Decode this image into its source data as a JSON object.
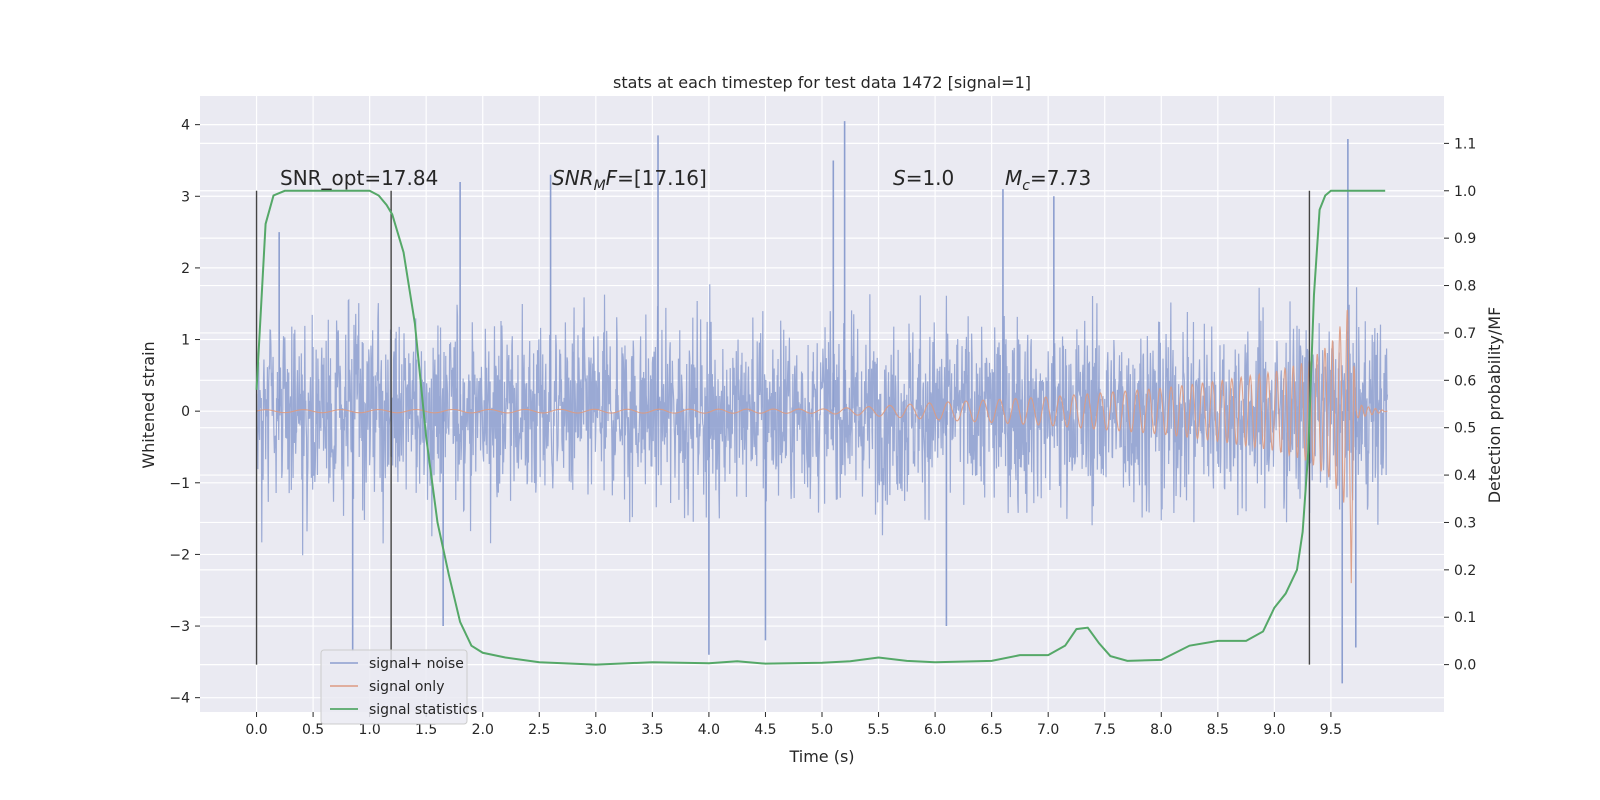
{
  "chart_data": {
    "type": "line",
    "title": "stats at each timestep for test data 1472 [signal=1]",
    "xlabel": "Time (s)",
    "ylabel": "Whitened strain",
    "y2label": "Detection probability/MF",
    "xlim": [
      -0.5,
      10.5
    ],
    "ylim": [
      -4.2,
      4.4
    ],
    "y2lim": [
      -0.1,
      1.2
    ],
    "x_ticks": [
      "0.0",
      "0.5",
      "1.0",
      "1.5",
      "2.0",
      "2.5",
      "3.0",
      "3.5",
      "4.0",
      "4.5",
      "5.0",
      "5.5",
      "6.0",
      "6.5",
      "7.0",
      "7.5",
      "8.0",
      "8.5",
      "9.0",
      "9.5"
    ],
    "y_ticks": [
      "4",
      "3",
      "2",
      "1",
      "0",
      "−1",
      "−2",
      "−3",
      "−4"
    ],
    "y2_ticks": [
      "1.1",
      "1.0",
      "0.9",
      "0.8",
      "0.7",
      "0.6",
      "0.5",
      "0.4",
      "0.3",
      "0.2",
      "0.1",
      "0.0"
    ],
    "grid": true,
    "legend_position": "lower-left",
    "annotations": {
      "snr_opt": "SNR_opt=17.84",
      "snr_mf_italic": "SNR",
      "snr_mf_sub": "M",
      "snr_mf_italic2": "F",
      "snr_mf_value": "=[17.16]",
      "s_italic": "S",
      "s_value": "=1.0",
      "mc_italic": "M",
      "mc_sub": "c",
      "mc_value": "=7.73"
    },
    "vertical_markers": [
      0.0,
      1.19,
      9.31
    ],
    "series": [
      {
        "name": "signal+ noise",
        "color": "#8c9ecf",
        "axis": "left",
        "noise_band": {
          "x_start": 0.0,
          "x_end": 10.0,
          "typical_abs": 1.2,
          "peak_abs": 3.5
        },
        "spikes": [
          {
            "x": 0.85,
            "y": -3.35
          },
          {
            "x": 1.65,
            "y": -3.0
          },
          {
            "x": 2.6,
            "y": 3.3
          },
          {
            "x": 3.55,
            "y": 3.85
          },
          {
            "x": 4.0,
            "y": -3.4
          },
          {
            "x": 4.5,
            "y": -3.2
          },
          {
            "x": 5.2,
            "y": 4.05
          },
          {
            "x": 5.1,
            "y": 3.5
          },
          {
            "x": 9.6,
            "y": -3.8
          },
          {
            "x": 9.65,
            "y": 3.8
          },
          {
            "x": 9.72,
            "y": -3.3
          },
          {
            "x": 6.1,
            "y": -3.0
          },
          {
            "x": 6.6,
            "y": 3.1
          },
          {
            "x": 7.05,
            "y": 3.0
          },
          {
            "x": 0.2,
            "y": 2.5
          },
          {
            "x": 1.8,
            "y": 3.2
          }
        ]
      },
      {
        "name": "signal only",
        "color": "#dd9a81",
        "axis": "left",
        "envelope": [
          {
            "x": 0.0,
            "y": 0.02
          },
          {
            "x": 5.0,
            "y": 0.03
          },
          {
            "x": 5.5,
            "y": 0.07
          },
          {
            "x": 6.0,
            "y": 0.12
          },
          {
            "x": 6.5,
            "y": 0.16
          },
          {
            "x": 7.0,
            "y": 0.2
          },
          {
            "x": 7.5,
            "y": 0.26
          },
          {
            "x": 8.0,
            "y": 0.32
          },
          {
            "x": 8.5,
            "y": 0.42
          },
          {
            "x": 9.0,
            "y": 0.55
          },
          {
            "x": 9.3,
            "y": 0.7
          },
          {
            "x": 9.5,
            "y": 0.95
          },
          {
            "x": 9.62,
            "y": 1.3
          },
          {
            "x": 9.68,
            "y": 1.6
          },
          {
            "x": 9.72,
            "y": 0.1
          },
          {
            "x": 10.0,
            "y": 0.0
          }
        ],
        "final_dip": -2.4
      },
      {
        "name": "signal statistics",
        "color": "#55a868",
        "axis": "right",
        "x": [
          0.0,
          0.08,
          0.15,
          0.25,
          0.4,
          0.6,
          0.8,
          1.0,
          1.08,
          1.15,
          1.2,
          1.3,
          1.4,
          1.5,
          1.6,
          1.7,
          1.8,
          1.9,
          2.0,
          2.2,
          2.5,
          3.0,
          3.5,
          4.0,
          4.25,
          4.5,
          5.0,
          5.25,
          5.5,
          5.75,
          6.0,
          6.5,
          6.75,
          7.0,
          7.15,
          7.25,
          7.35,
          7.45,
          7.55,
          7.7,
          8.0,
          8.25,
          8.5,
          8.75,
          8.9,
          9.0,
          9.1,
          9.2,
          9.25,
          9.3,
          9.35,
          9.4,
          9.45,
          9.5,
          9.6,
          9.8,
          9.98
        ],
        "y": [
          0.58,
          0.93,
          0.99,
          1.0,
          1.0,
          1.0,
          1.0,
          1.0,
          0.99,
          0.97,
          0.95,
          0.87,
          0.72,
          0.48,
          0.3,
          0.19,
          0.09,
          0.04,
          0.025,
          0.015,
          0.005,
          0.0,
          0.005,
          0.003,
          0.007,
          0.002,
          0.004,
          0.007,
          0.015,
          0.008,
          0.005,
          0.008,
          0.02,
          0.02,
          0.04,
          0.075,
          0.078,
          0.045,
          0.018,
          0.008,
          0.01,
          0.04,
          0.05,
          0.05,
          0.07,
          0.12,
          0.15,
          0.2,
          0.28,
          0.45,
          0.78,
          0.96,
          0.99,
          1.0,
          1.0,
          1.0,
          1.0
        ]
      }
    ]
  }
}
